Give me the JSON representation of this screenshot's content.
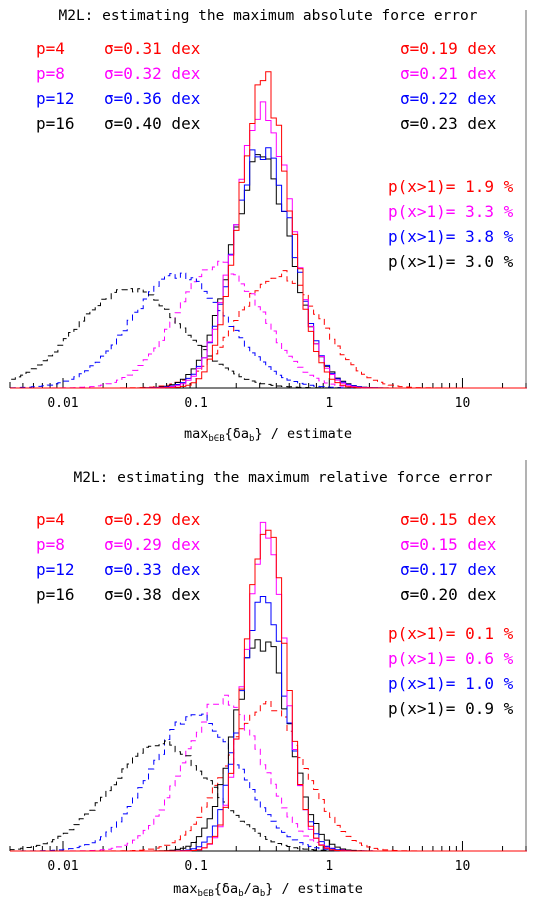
{
  "colors": {
    "p4": "#ff0000",
    "p8": "#ff00ff",
    "p12": "#0000ff",
    "p16": "#000000"
  },
  "chart_data": [
    {
      "type": "histogram",
      "title": "M2L: estimating the maximum absolute force error",
      "xlabel": {
        "main": "max",
        "sub": "b∈B",
        "body": "{δa",
        "sub2": "b",
        "tail": "} / estimate"
      },
      "xscale": "log",
      "xlim": [
        0.004,
        30
      ],
      "xticks": [
        "0.01",
        "0.1",
        "1",
        "10"
      ],
      "legend_left": [
        {
          "p": "p=4",
          "sigma": "σ=0.31 dex",
          "color": "#ff0000"
        },
        {
          "p": "p=8",
          "sigma": "σ=0.32 dex",
          "color": "#ff00ff"
        },
        {
          "p": "p=12",
          "sigma": "σ=0.36 dex",
          "color": "#0000ff"
        },
        {
          "p": "p=16",
          "sigma": "σ=0.40 dex",
          "color": "#000000"
        }
      ],
      "legend_right_sigma": [
        {
          "text": "σ=0.19 dex",
          "color": "#ff0000"
        },
        {
          "text": "σ=0.21 dex",
          "color": "#ff00ff"
        },
        {
          "text": "σ=0.22 dex",
          "color": "#0000ff"
        },
        {
          "text": "σ=0.23 dex",
          "color": "#000000"
        }
      ],
      "legend_right_prob": [
        {
          "text": "p(x>1)= 1.9 %",
          "color": "#ff0000"
        },
        {
          "text": "p(x>1)= 3.3 %",
          "color": "#ff00ff"
        },
        {
          "text": "p(x>1)= 3.8 %",
          "color": "#0000ff"
        },
        {
          "text": "p(x>1)= 3.0 %",
          "color": "#000000"
        }
      ],
      "dashed_series": [
        {
          "name": "p=4",
          "color": "#ff0000",
          "peak_x": 0.42,
          "sigma_dex": 0.31,
          "peak_frac": 0.38
        },
        {
          "name": "p=8",
          "color": "#ff00ff",
          "peak_x": 0.15,
          "sigma_dex": 0.32,
          "peak_frac": 0.41
        },
        {
          "name": "p=12",
          "color": "#0000ff",
          "peak_x": 0.075,
          "sigma_dex": 0.36,
          "peak_frac": 0.38
        },
        {
          "name": "p=16",
          "color": "#000000",
          "peak_x": 0.032,
          "sigma_dex": 0.4,
          "peak_frac": 0.33
        }
      ],
      "solid_series": [
        {
          "name": "p=4",
          "color": "#ff0000",
          "peak_x": 0.33,
          "sigma_dex": 0.19,
          "peak_frac": 1.0
        },
        {
          "name": "p=8",
          "color": "#ff00ff",
          "peak_x": 0.32,
          "sigma_dex": 0.21,
          "peak_frac": 0.92
        },
        {
          "name": "p=12",
          "color": "#0000ff",
          "peak_x": 0.32,
          "sigma_dex": 0.22,
          "peak_frac": 0.8
        },
        {
          "name": "p=16",
          "color": "#000000",
          "peak_x": 0.31,
          "sigma_dex": 0.23,
          "peak_frac": 0.74
        }
      ]
    },
    {
      "type": "histogram",
      "title": "M2L: estimating the maximum relative force error",
      "xlabel": {
        "main": "max",
        "sub": "b∈B",
        "body": "{δa",
        "sub2": "b",
        "tail": "/a",
        "sub3": "b",
        "tail2": "} / estimate"
      },
      "xscale": "log",
      "xlim": [
        0.004,
        30
      ],
      "xticks": [
        "0.01",
        "0.1",
        "1",
        "10"
      ],
      "legend_left": [
        {
          "p": "p=4",
          "sigma": "σ=0.29 dex",
          "color": "#ff0000"
        },
        {
          "p": "p=8",
          "sigma": "σ=0.29 dex",
          "color": "#ff00ff"
        },
        {
          "p": "p=12",
          "sigma": "σ=0.33 dex",
          "color": "#0000ff"
        },
        {
          "p": "p=16",
          "sigma": "σ=0.38 dex",
          "color": "#000000"
        }
      ],
      "legend_right_sigma": [
        {
          "text": "σ=0.15 dex",
          "color": "#ff0000"
        },
        {
          "text": "σ=0.15 dex",
          "color": "#ff00ff"
        },
        {
          "text": "σ=0.17 dex",
          "color": "#0000ff"
        },
        {
          "text": "σ=0.20 dex",
          "color": "#000000"
        }
      ],
      "legend_right_prob": [
        {
          "text": "p(x>1)= 0.1 %",
          "color": "#ff0000"
        },
        {
          "text": "p(x>1)= 0.6 %",
          "color": "#ff00ff"
        },
        {
          "text": "p(x>1)= 1.0 %",
          "color": "#0000ff"
        },
        {
          "text": "p(x>1)= 0.9 %",
          "color": "#000000"
        }
      ],
      "dashed_series": [
        {
          "name": "p=4",
          "color": "#ff0000",
          "peak_x": 0.33,
          "sigma_dex": 0.29,
          "peak_frac": 0.41
        },
        {
          "name": "p=8",
          "color": "#ff00ff",
          "peak_x": 0.16,
          "sigma_dex": 0.29,
          "peak_frac": 0.42
        },
        {
          "name": "p=12",
          "color": "#0000ff",
          "peak_x": 0.1,
          "sigma_dex": 0.33,
          "peak_frac": 0.38
        },
        {
          "name": "p=16",
          "color": "#000000",
          "peak_x": 0.055,
          "sigma_dex": 0.38,
          "peak_frac": 0.3
        }
      ],
      "solid_series": [
        {
          "name": "p=4",
          "color": "#ff0000",
          "peak_x": 0.33,
          "sigma_dex": 0.15,
          "peak_frac": 0.92
        },
        {
          "name": "p=8",
          "color": "#ff00ff",
          "peak_x": 0.33,
          "sigma_dex": 0.15,
          "peak_frac": 0.88
        },
        {
          "name": "p=12",
          "color": "#0000ff",
          "peak_x": 0.32,
          "sigma_dex": 0.17,
          "peak_frac": 0.7
        },
        {
          "name": "p=16",
          "color": "#000000",
          "peak_x": 0.31,
          "sigma_dex": 0.2,
          "peak_frac": 0.6
        }
      ]
    }
  ]
}
